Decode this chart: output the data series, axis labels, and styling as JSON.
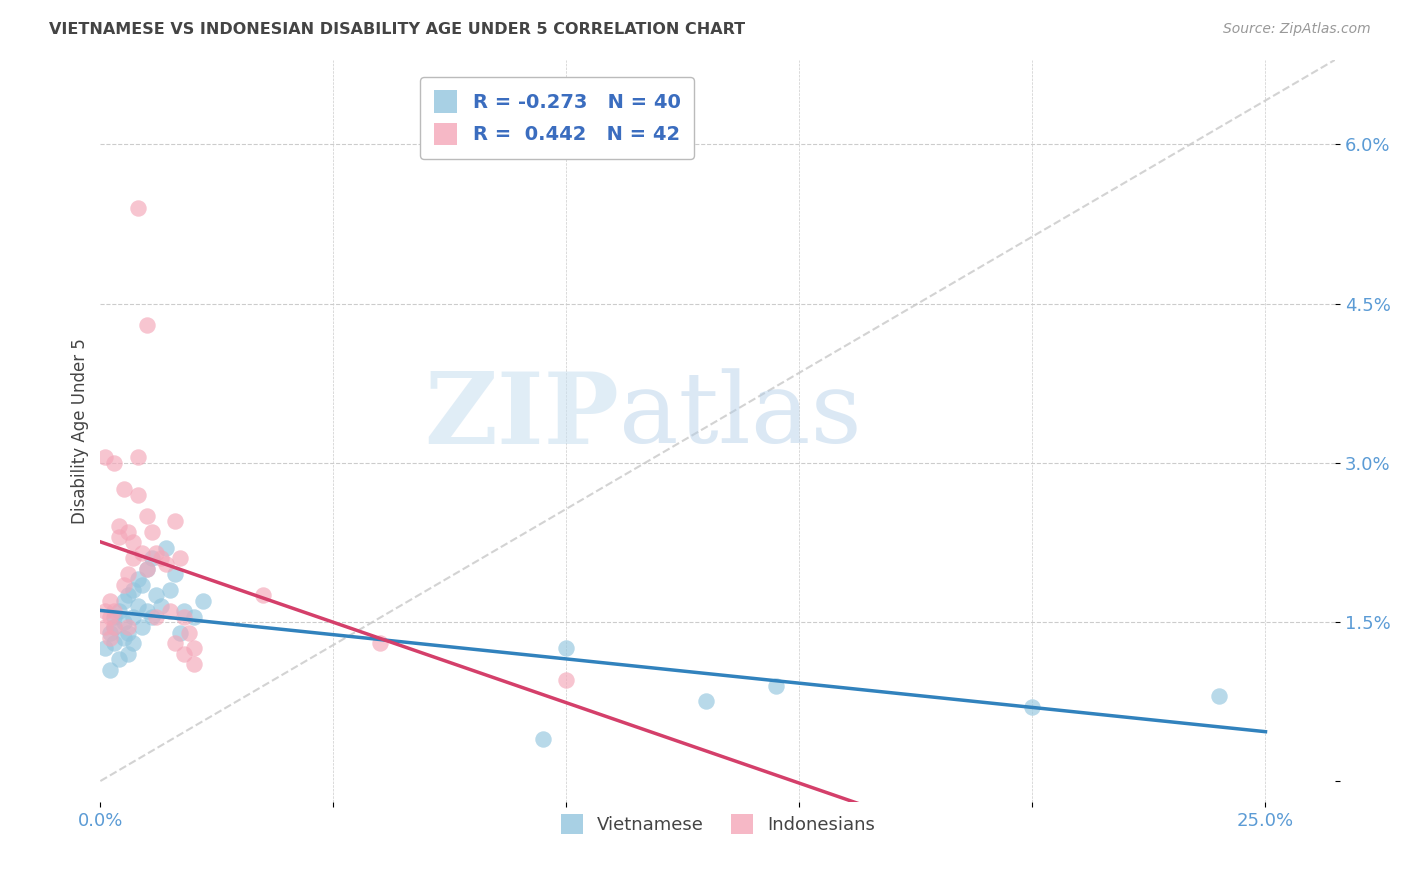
{
  "title": "VIETNAMESE VS INDONESIAN DISABILITY AGE UNDER 5 CORRELATION CHART",
  "source": "Source: ZipAtlas.com",
  "ylabel": "Disability Age Under 5",
  "x_ticks": [
    0.0,
    0.05,
    0.1,
    0.15,
    0.2,
    0.25
  ],
  "x_tick_labels": [
    "0.0%",
    "",
    "",
    "",
    "",
    "25.0%"
  ],
  "y_ticks": [
    0.0,
    0.015,
    0.03,
    0.045,
    0.06
  ],
  "y_tick_labels": [
    "",
    "1.5%",
    "3.0%",
    "4.5%",
    "6.0%"
  ],
  "xlim": [
    0.0,
    0.265
  ],
  "ylim": [
    -0.002,
    0.068
  ],
  "watermark_zip": "ZIP",
  "watermark_atlas": "atlas",
  "title_color": "#444444",
  "source_color": "#999999",
  "tick_color": "#5b9bd5",
  "grid_color": "#cccccc",
  "viet_color": "#92c5de",
  "indo_color": "#f4a6b8",
  "viet_line_color": "#3182bd",
  "indo_line_color": "#d43f6a",
  "ref_line_color": "#c8c8c8",
  "viet_scatter": [
    [
      0.001,
      0.0125
    ],
    [
      0.002,
      0.014
    ],
    [
      0.002,
      0.0105
    ],
    [
      0.003,
      0.0155
    ],
    [
      0.003,
      0.013
    ],
    [
      0.003,
      0.0145
    ],
    [
      0.004,
      0.016
    ],
    [
      0.004,
      0.0115
    ],
    [
      0.005,
      0.017
    ],
    [
      0.005,
      0.0135
    ],
    [
      0.005,
      0.015
    ],
    [
      0.006,
      0.0175
    ],
    [
      0.006,
      0.014
    ],
    [
      0.006,
      0.012
    ],
    [
      0.007,
      0.018
    ],
    [
      0.007,
      0.0155
    ],
    [
      0.007,
      0.013
    ],
    [
      0.008,
      0.019
    ],
    [
      0.008,
      0.0165
    ],
    [
      0.009,
      0.0185
    ],
    [
      0.009,
      0.0145
    ],
    [
      0.01,
      0.02
    ],
    [
      0.01,
      0.016
    ],
    [
      0.011,
      0.021
    ],
    [
      0.011,
      0.0155
    ],
    [
      0.012,
      0.0175
    ],
    [
      0.013,
      0.0165
    ],
    [
      0.014,
      0.022
    ],
    [
      0.015,
      0.018
    ],
    [
      0.016,
      0.0195
    ],
    [
      0.017,
      0.014
    ],
    [
      0.018,
      0.016
    ],
    [
      0.02,
      0.0155
    ],
    [
      0.022,
      0.017
    ],
    [
      0.1,
      0.0125
    ],
    [
      0.13,
      0.0075
    ],
    [
      0.145,
      0.009
    ],
    [
      0.2,
      0.007
    ],
    [
      0.24,
      0.008
    ],
    [
      0.095,
      0.004
    ]
  ],
  "indo_scatter": [
    [
      0.001,
      0.0145
    ],
    [
      0.001,
      0.016
    ],
    [
      0.002,
      0.017
    ],
    [
      0.002,
      0.0155
    ],
    [
      0.002,
      0.0135
    ],
    [
      0.003,
      0.016
    ],
    [
      0.003,
      0.0145
    ],
    [
      0.003,
      0.03
    ],
    [
      0.004,
      0.024
    ],
    [
      0.004,
      0.023
    ],
    [
      0.005,
      0.0275
    ],
    [
      0.005,
      0.0185
    ],
    [
      0.006,
      0.0195
    ],
    [
      0.006,
      0.0235
    ],
    [
      0.006,
      0.0145
    ],
    [
      0.007,
      0.021
    ],
    [
      0.007,
      0.0225
    ],
    [
      0.008,
      0.0305
    ],
    [
      0.008,
      0.027
    ],
    [
      0.009,
      0.0215
    ],
    [
      0.01,
      0.025
    ],
    [
      0.01,
      0.02
    ],
    [
      0.011,
      0.0235
    ],
    [
      0.012,
      0.0215
    ],
    [
      0.012,
      0.0155
    ],
    [
      0.013,
      0.021
    ],
    [
      0.014,
      0.0205
    ],
    [
      0.015,
      0.016
    ],
    [
      0.016,
      0.0245
    ],
    [
      0.016,
      0.013
    ],
    [
      0.017,
      0.021
    ],
    [
      0.018,
      0.0155
    ],
    [
      0.018,
      0.012
    ],
    [
      0.019,
      0.014
    ],
    [
      0.02,
      0.011
    ],
    [
      0.02,
      0.0125
    ],
    [
      0.035,
      0.0175
    ],
    [
      0.06,
      0.013
    ],
    [
      0.008,
      0.054
    ],
    [
      0.01,
      0.043
    ],
    [
      0.001,
      0.0305
    ],
    [
      0.1,
      0.0095
    ]
  ]
}
